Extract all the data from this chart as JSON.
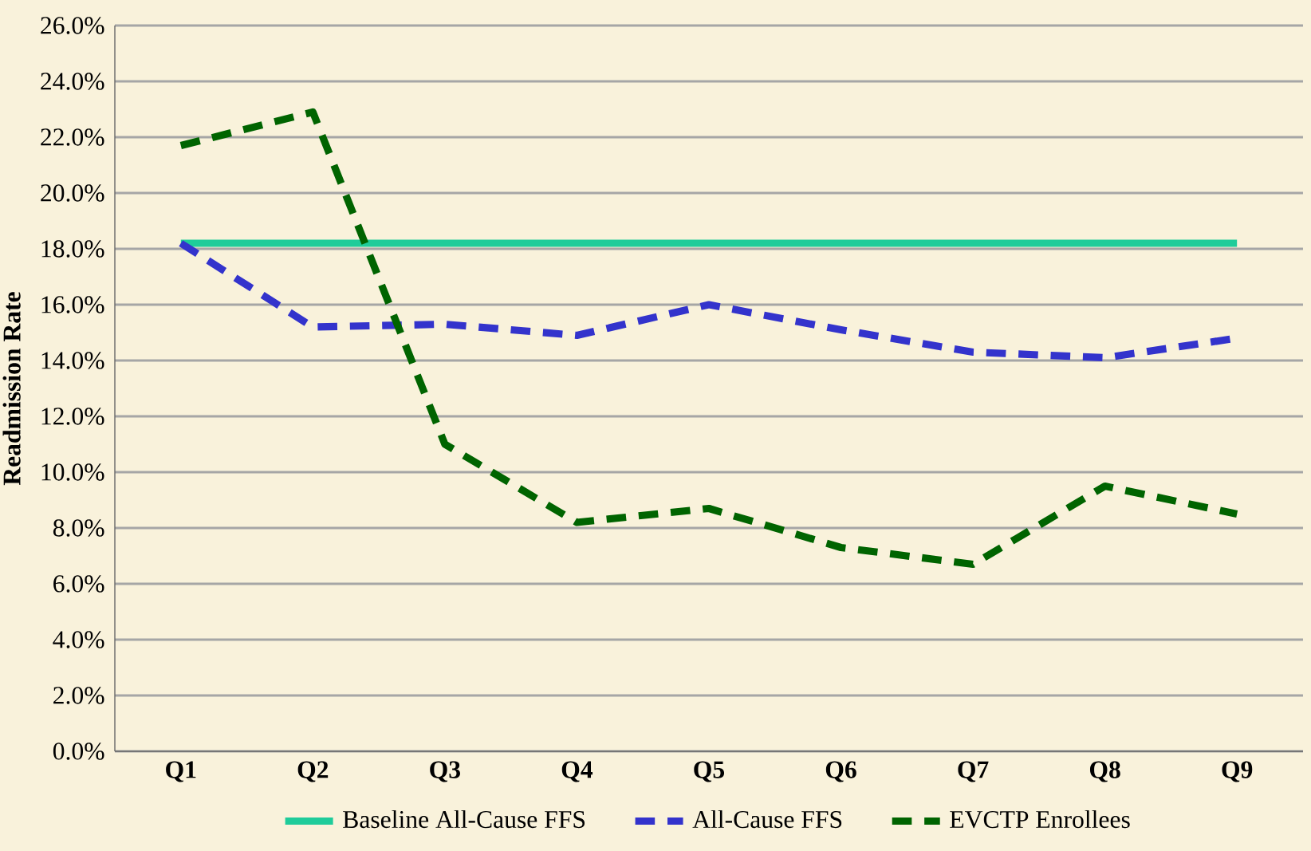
{
  "chart_data": {
    "type": "line",
    "ylabel": "Readmission Rate",
    "categories": [
      "Q1",
      "Q2",
      "Q3",
      "Q4",
      "Q5",
      "Q6",
      "Q7",
      "Q8",
      "Q9"
    ],
    "series": [
      {
        "name": "Baseline All-Cause FFS",
        "color": "#1fcc9a",
        "line_style": "solid",
        "values": [
          18.2,
          18.2,
          18.2,
          18.2,
          18.2,
          18.2,
          18.2,
          18.2,
          18.2
        ]
      },
      {
        "name": "All-Cause FFS",
        "color": "#3333cc",
        "line_style": "dashed",
        "values": [
          18.2,
          15.2,
          15.3,
          14.9,
          16.0,
          15.1,
          14.3,
          14.1,
          14.8
        ]
      },
      {
        "name": "EVCTP Enrollees",
        "color": "#006400",
        "line_style": "dashed",
        "values": [
          21.7,
          22.9,
          11.0,
          8.2,
          8.7,
          7.3,
          6.7,
          9.5,
          8.5
        ]
      }
    ],
    "ylim": [
      0,
      26
    ],
    "yticks": [
      {
        "value": 0,
        "label": "0.0%"
      },
      {
        "value": 2,
        "label": "2.0%"
      },
      {
        "value": 4,
        "label": "4.0%"
      },
      {
        "value": 6,
        "label": "6.0%"
      },
      {
        "value": 8,
        "label": "8.0%"
      },
      {
        "value": 10,
        "label": "10.0%"
      },
      {
        "value": 12,
        "label": "12.0%"
      },
      {
        "value": 14,
        "label": "14.0%"
      },
      {
        "value": 16,
        "label": "16.0%"
      },
      {
        "value": 18,
        "label": "18.0%"
      },
      {
        "value": 20,
        "label": "20.0%"
      },
      {
        "value": 22,
        "label": "22.0%"
      },
      {
        "value": 24,
        "label": "24.0%"
      },
      {
        "value": 26,
        "label": "26.0%"
      }
    ],
    "grid": "y",
    "legend": "bottom",
    "marker": "none"
  }
}
